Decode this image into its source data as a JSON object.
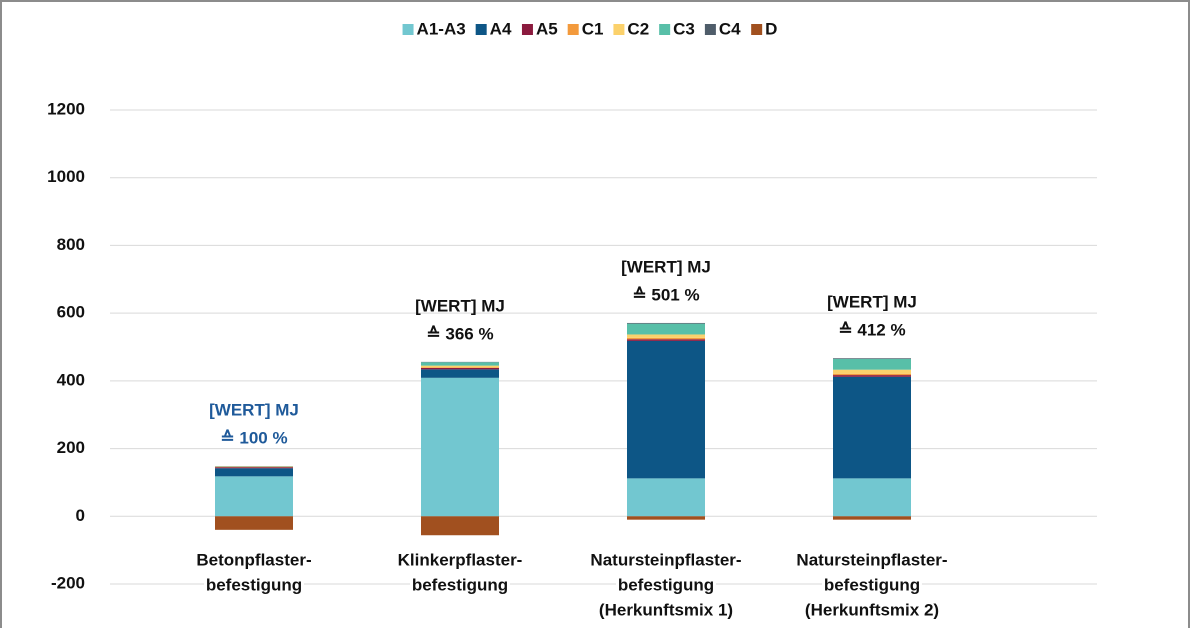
{
  "chart_data": {
    "type": "stacked_bar",
    "categories": [
      [
        "Betonpflaster-",
        "befestigung"
      ],
      [
        "Klinkerpflaster-",
        "befestigung"
      ],
      [
        "Natursteinpflaster-",
        "befestigung",
        "(Herkunftsmix 1)"
      ],
      [
        "Natursteinpflaster-",
        "befestigung",
        "(Herkunftsmix 2)"
      ]
    ],
    "series": [
      {
        "name": "A1-A3",
        "color": "#72c7d0",
        "values": [
          118,
          409,
          112,
          112
        ]
      },
      {
        "name": "A4",
        "color": "#0d5686",
        "values": [
          24,
          25,
          406,
          300
        ]
      },
      {
        "name": "A5",
        "color": "#8b1a3e",
        "values": [
          3,
          4,
          5,
          5
        ]
      },
      {
        "name": "C1",
        "color": "#f39a3c",
        "values": [
          1,
          2,
          4,
          4
        ]
      },
      {
        "name": "C2",
        "color": "#fbd16b",
        "values": [
          1,
          5,
          10,
          12
        ]
      },
      {
        "name": "C3",
        "color": "#58bfa8",
        "values": [
          1,
          10,
          32,
          32
        ]
      },
      {
        "name": "C4",
        "color": "#4f5d6a",
        "values": [
          0.5,
          1,
          2,
          2
        ]
      },
      {
        "name": "D",
        "color": "#a1501f",
        "values": [
          -40,
          -56,
          -10,
          -10
        ]
      }
    ],
    "annotations": [
      {
        "lines": [
          "[WERT] MJ",
          "≙ 100 %"
        ],
        "color": "#1f5a9a"
      },
      {
        "lines": [
          "[WERT] MJ",
          "≙ 366 %"
        ],
        "color": "#111111"
      },
      {
        "lines": [
          "[WERT] MJ",
          "≙ 501 %"
        ],
        "color": "#111111"
      },
      {
        "lines": [
          "[WERT] MJ",
          "≙ 412 %"
        ],
        "color": "#111111"
      }
    ],
    "ylim": [
      -200,
      1200
    ],
    "yticks": [
      -200,
      0,
      200,
      400,
      600,
      800,
      1000,
      1200
    ],
    "grid": true,
    "legend": "top"
  }
}
